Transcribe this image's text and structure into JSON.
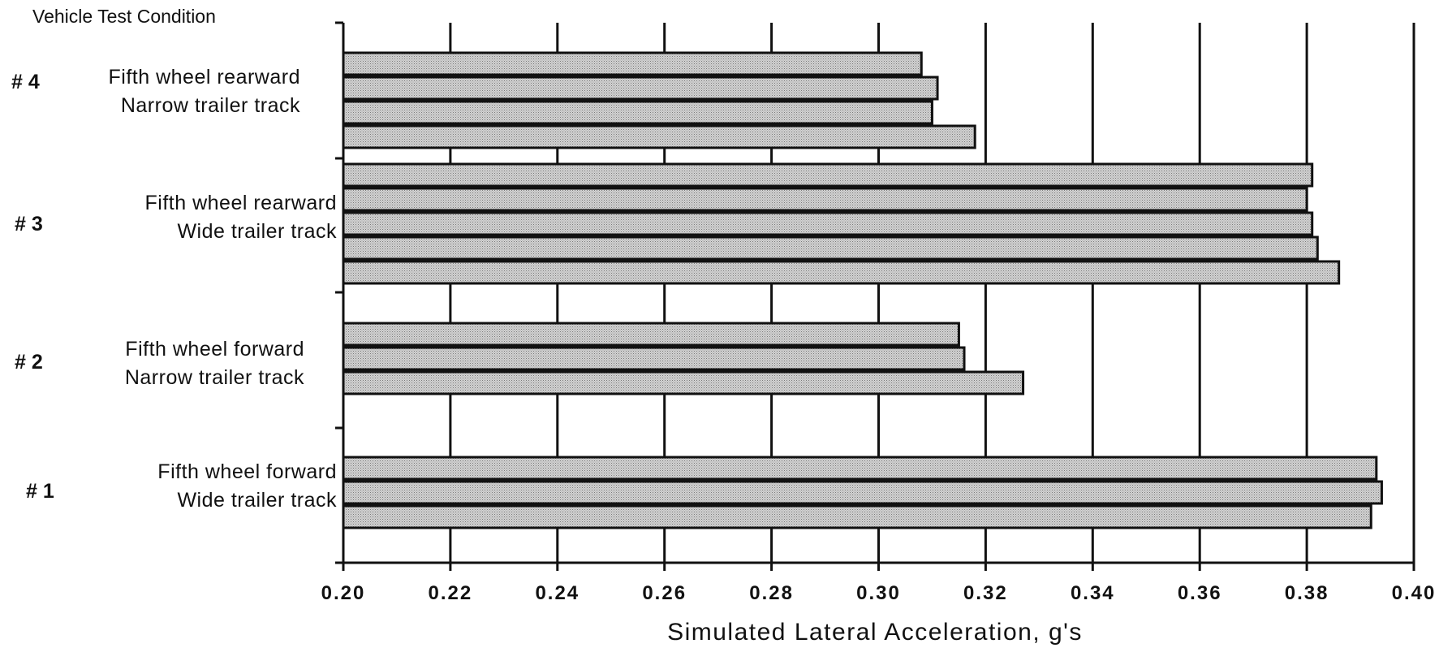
{
  "chart_data": {
    "type": "bar",
    "orientation": "horizontal",
    "title": "",
    "ylabel": "Vehicle Test Condition",
    "xlabel": "Simulated Lateral Acceleration,  g's",
    "xlim": [
      0.2,
      0.4
    ],
    "xticks": [
      "0.20",
      "0.22",
      "0.24",
      "0.26",
      "0.28",
      "0.30",
      "0.32",
      "0.34",
      "0.36",
      "0.38",
      "0.40"
    ],
    "grid": true,
    "groups": [
      {
        "number": "# 1",
        "line1": "Fifth wheel forward",
        "line2": "Wide trailer track",
        "values": [
          0.393,
          0.394,
          0.392
        ]
      },
      {
        "number": "# 2",
        "line1": "Fifth wheel forward",
        "line2": "Narrow trailer track",
        "values": [
          0.315,
          0.316,
          0.327
        ]
      },
      {
        "number": "# 3",
        "line1": "Fifth wheel rearward",
        "line2": "Wide trailer track",
        "values": [
          0.381,
          0.38,
          0.381,
          0.382,
          0.386
        ]
      },
      {
        "number": "# 4",
        "line1": "Fifth wheel rearward",
        "line2": "Narrow trailer track",
        "values": [
          0.308,
          0.311,
          0.31,
          0.318
        ]
      }
    ],
    "bar_fill": "#c8c8c8",
    "bar_stroke": "#111111"
  }
}
